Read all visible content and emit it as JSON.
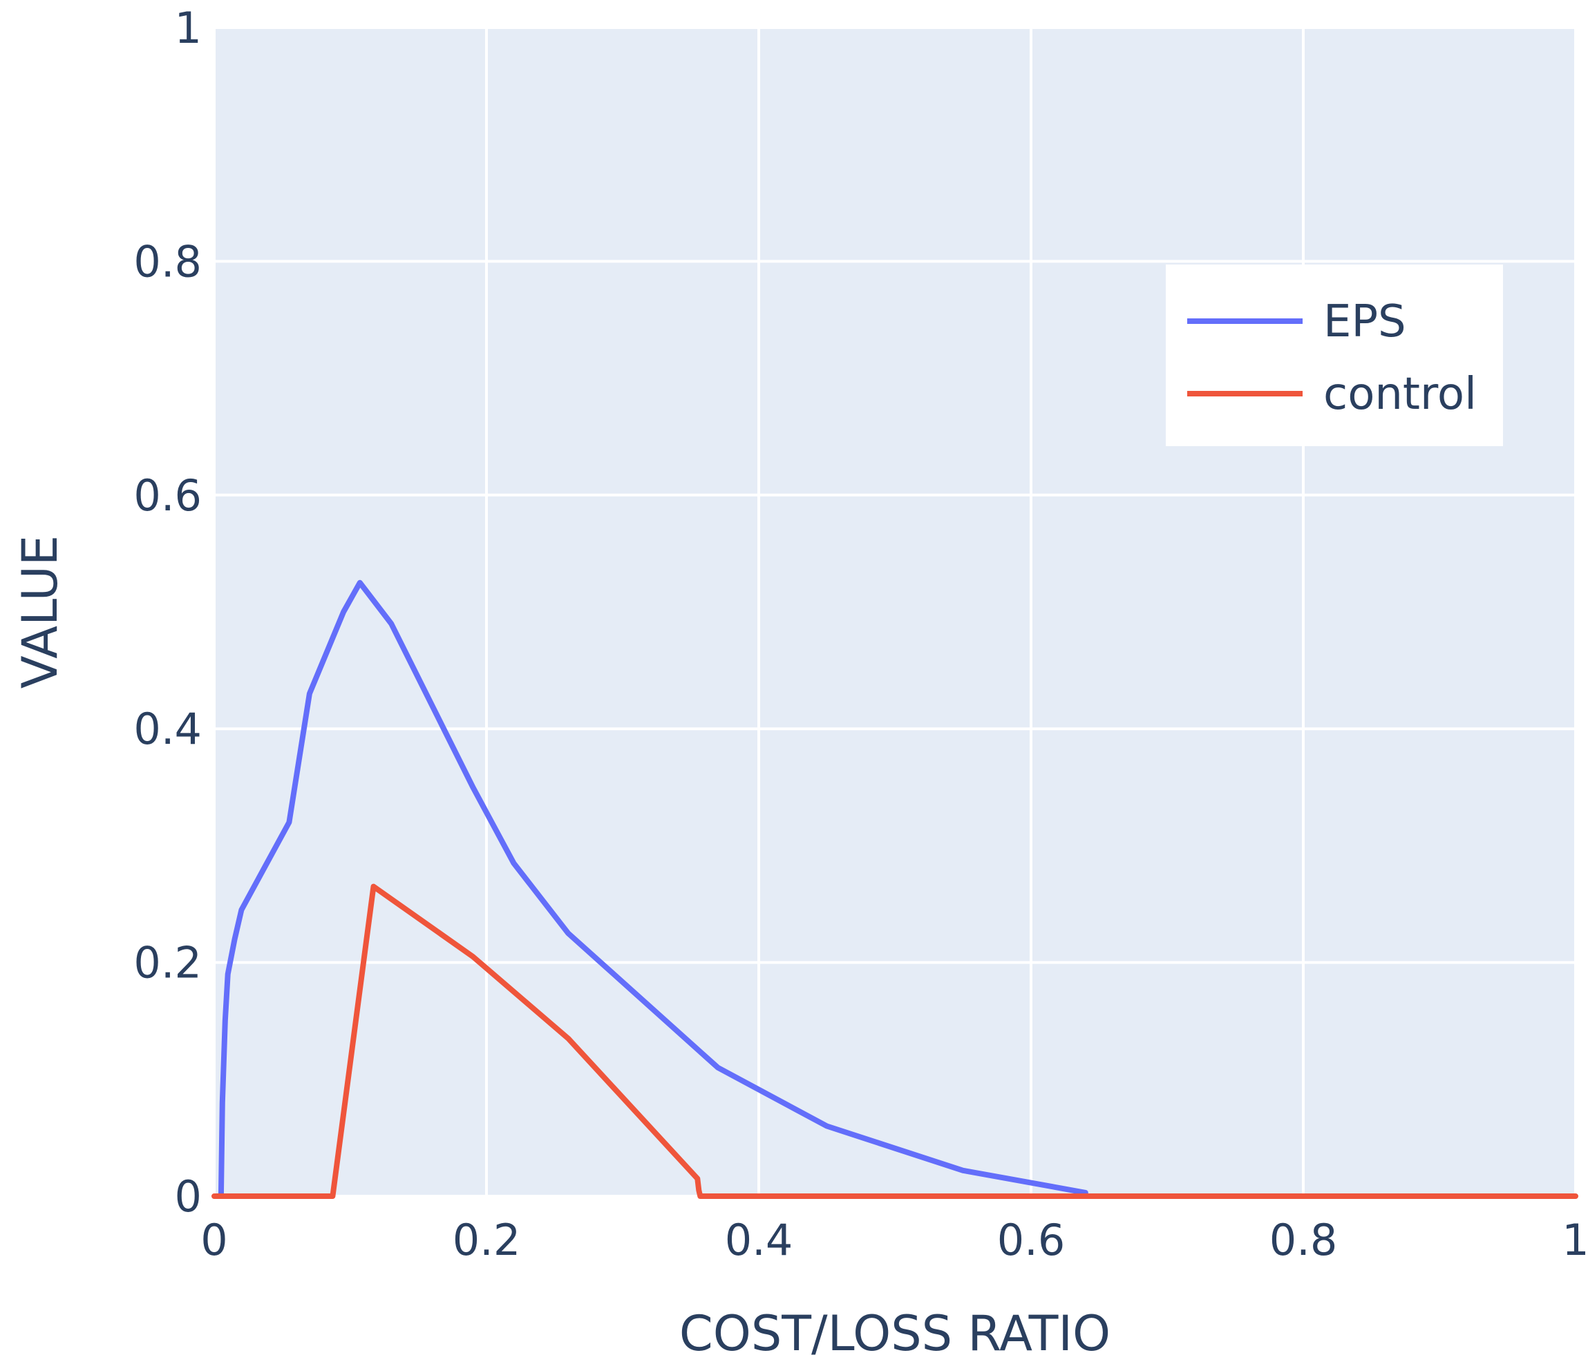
{
  "chart_data": {
    "type": "line",
    "xlabel": "COST/LOSS RATIO",
    "ylabel": "VALUE",
    "xlim": [
      0,
      1
    ],
    "ylim": [
      0,
      1
    ],
    "x_ticks": [
      "0",
      "0.2",
      "0.4",
      "0.6",
      "0.8",
      "1"
    ],
    "y_ticks": [
      "0",
      "0.2",
      "0.4",
      "0.6",
      "0.8",
      "1"
    ],
    "grid": true,
    "legend_position": "top-right",
    "background_color": "#e5ecf6",
    "series": [
      {
        "name": "EPS",
        "color": "#636efa",
        "x": [
          0.005,
          0.006,
          0.008,
          0.01,
          0.015,
          0.02,
          0.055,
          0.07,
          0.095,
          0.107,
          0.13,
          0.19,
          0.22,
          0.26,
          0.37,
          0.45,
          0.55,
          0.64
        ],
        "y": [
          0.0,
          0.08,
          0.15,
          0.19,
          0.22,
          0.245,
          0.32,
          0.43,
          0.5,
          0.525,
          0.49,
          0.35,
          0.285,
          0.225,
          0.11,
          0.06,
          0.022,
          0.003
        ]
      },
      {
        "name": "control",
        "color": "#ef553b",
        "x": [
          0.0,
          0.087,
          0.117,
          0.19,
          0.26,
          0.355,
          0.356,
          0.357,
          1.0
        ],
        "y": [
          0.0,
          0.0,
          0.265,
          0.205,
          0.135,
          0.015,
          0.005,
          0.0,
          0.0
        ]
      }
    ]
  }
}
